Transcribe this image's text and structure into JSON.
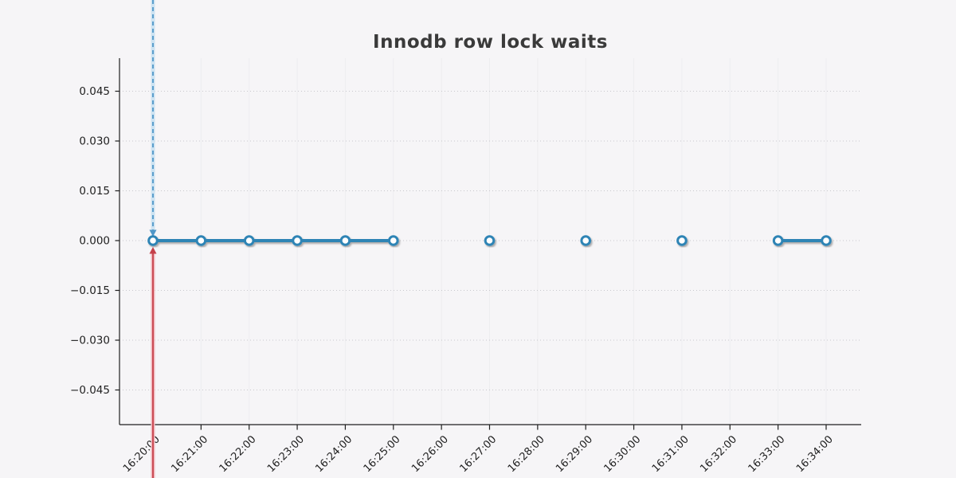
{
  "chart_data": {
    "type": "line",
    "title": "Innodb row lock waits",
    "xlabel": "",
    "ylabel": "",
    "x_labels": [
      "16:20:00",
      "16:21:00",
      "16:22:00",
      "16:23:00",
      "16:24:00",
      "16:25:00",
      "16:26:00",
      "16:27:00",
      "16:28:00",
      "16:29:00",
      "16:30:00",
      "16:31:00",
      "16:32:00",
      "16:33:00",
      "16:34:00"
    ],
    "series": [
      {
        "name": "Innodb row lock waits",
        "values": [
          0,
          0,
          0,
          0,
          0,
          0,
          null,
          0,
          null,
          0,
          null,
          0,
          null,
          0,
          0
        ]
      }
    ],
    "yticks": {
      "values": [
        0.045,
        0.03,
        0.015,
        0.0,
        -0.015,
        -0.03,
        -0.045
      ],
      "labels": [
        "0.045",
        "0.030",
        "0.015",
        "0.000",
        "−0.015",
        "−0.030",
        "−0.045"
      ]
    },
    "ylim": [
      -0.055,
      0.055
    ],
    "grid": "horizontal-dotted, faint-vertical",
    "legend": "none",
    "annotations": {
      "cursor_time": "16:20:00",
      "down_arrow_guide": {
        "style": "dashed",
        "direction": "down",
        "extent": "image-top-to-point"
      },
      "up_arrow_guide": {
        "style": "solid",
        "direction": "up",
        "extent": "point-to-image-bottom"
      }
    },
    "colors": {
      "background": "#f6f5f7",
      "title": "#3a3a3a",
      "axis": "#1f1f1f",
      "tick_text": "#1f1f1f",
      "grid": "#c8c8cc",
      "vgrid": "#ededf0",
      "series": "#2e84b5",
      "marker_fill": "#ffffff",
      "cursor_blue": "#4f97c8",
      "cursor_blue_halo": "#cde3f2",
      "cursor_red": "#c5404a",
      "cursor_red_halo": "#f2b8bc"
    }
  }
}
